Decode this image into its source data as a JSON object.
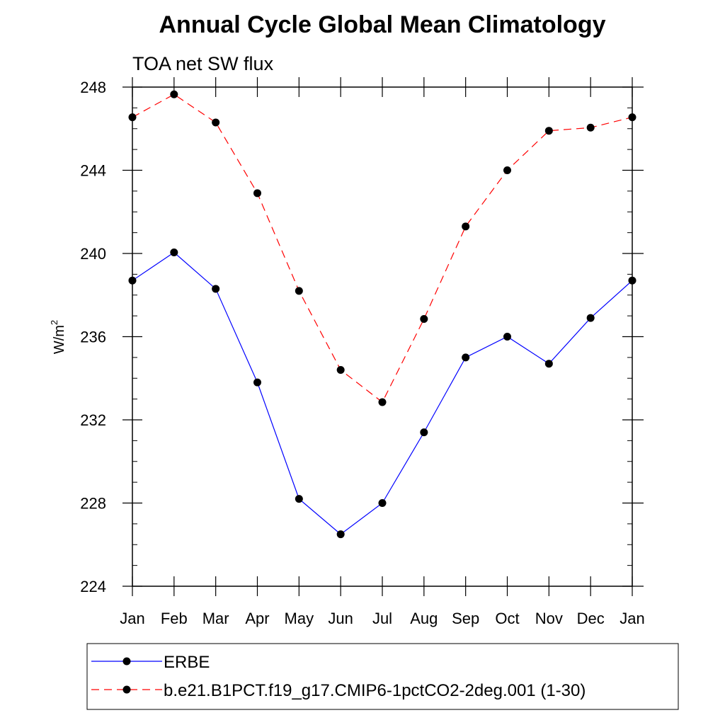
{
  "chart_data": {
    "type": "line",
    "title": "Annual Cycle Global Mean Climatology",
    "subtitle": "TOA net SW flux",
    "ylabel": "W/m",
    "ylabel_superscript": "2",
    "xlabel": "",
    "categories": [
      "Jan",
      "Feb",
      "Mar",
      "Apr",
      "May",
      "Jun",
      "Jul",
      "Aug",
      "Sep",
      "Oct",
      "Nov",
      "Dec",
      "Jan"
    ],
    "ylim": [
      224,
      248
    ],
    "yticks": [
      224,
      228,
      232,
      236,
      240,
      244,
      248
    ],
    "ytick_labels": [
      "224",
      "228",
      "232",
      "236",
      "240",
      "244",
      "248"
    ],
    "series": [
      {
        "name": "ERBE",
        "color": "#0000ff",
        "style": "solid",
        "values": [
          238.7,
          240.05,
          238.3,
          233.8,
          228.2,
          226.5,
          228.0,
          231.4,
          235.0,
          236.0,
          234.7,
          236.9,
          238.7
        ]
      },
      {
        "name": "b.e21.B1PCT.f19_g17.CMIP6-1pctCO2-2deg.001 (1-30)",
        "color": "#ff0000",
        "style": "dashed",
        "values": [
          246.55,
          247.65,
          246.3,
          242.9,
          238.2,
          234.4,
          232.85,
          236.85,
          241.3,
          244.0,
          245.9,
          246.05,
          246.55
        ]
      }
    ],
    "legend_position": "bottom"
  }
}
